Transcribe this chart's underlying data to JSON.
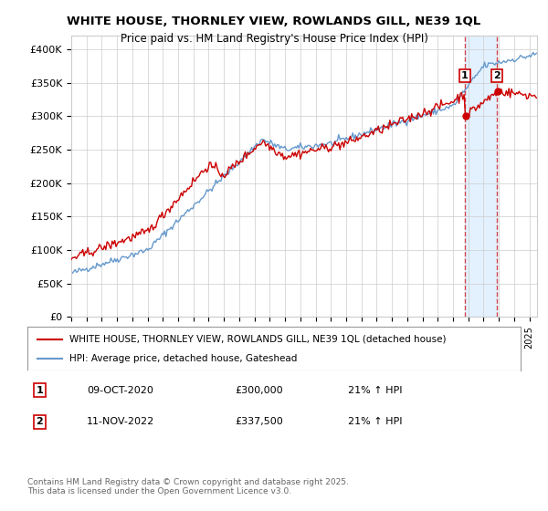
{
  "title": "WHITE HOUSE, THORNLEY VIEW, ROWLANDS GILL, NE39 1QL",
  "subtitle": "Price paid vs. HM Land Registry's House Price Index (HPI)",
  "ylabel_ticks": [
    "£0",
    "£50K",
    "£100K",
    "£150K",
    "£200K",
    "£250K",
    "£300K",
    "£350K",
    "£400K"
  ],
  "ytick_values": [
    0,
    50000,
    100000,
    150000,
    200000,
    250000,
    300000,
    350000,
    400000
  ],
  "ylim": [
    0,
    420000
  ],
  "xlim_start": 1995.0,
  "xlim_end": 2025.5,
  "sale1_date": 2020.77,
  "sale1_price": 300000,
  "sale1_label": "1",
  "sale2_date": 2022.87,
  "sale2_price": 337500,
  "sale2_label": "2",
  "red_color": "#cc0000",
  "blue_color": "#6699cc",
  "shaded_color": "#ddeeff",
  "legend_line1": "WHITE HOUSE, THORNLEY VIEW, ROWLANDS GILL, NE39 1QL (detached house)",
  "legend_line2": "HPI: Average price, detached house, Gateshead",
  "table_row1_num": "1",
  "table_row1_date": "09-OCT-2020",
  "table_row1_price": "£300,000",
  "table_row1_hpi": "21% ↑ HPI",
  "table_row2_num": "2",
  "table_row2_date": "11-NOV-2022",
  "table_row2_price": "£337,500",
  "table_row2_hpi": "21% ↑ HPI",
  "footer": "Contains HM Land Registry data © Crown copyright and database right 2025.\nThis data is licensed under the Open Government Licence v3.0.",
  "background_color": "#ffffff"
}
